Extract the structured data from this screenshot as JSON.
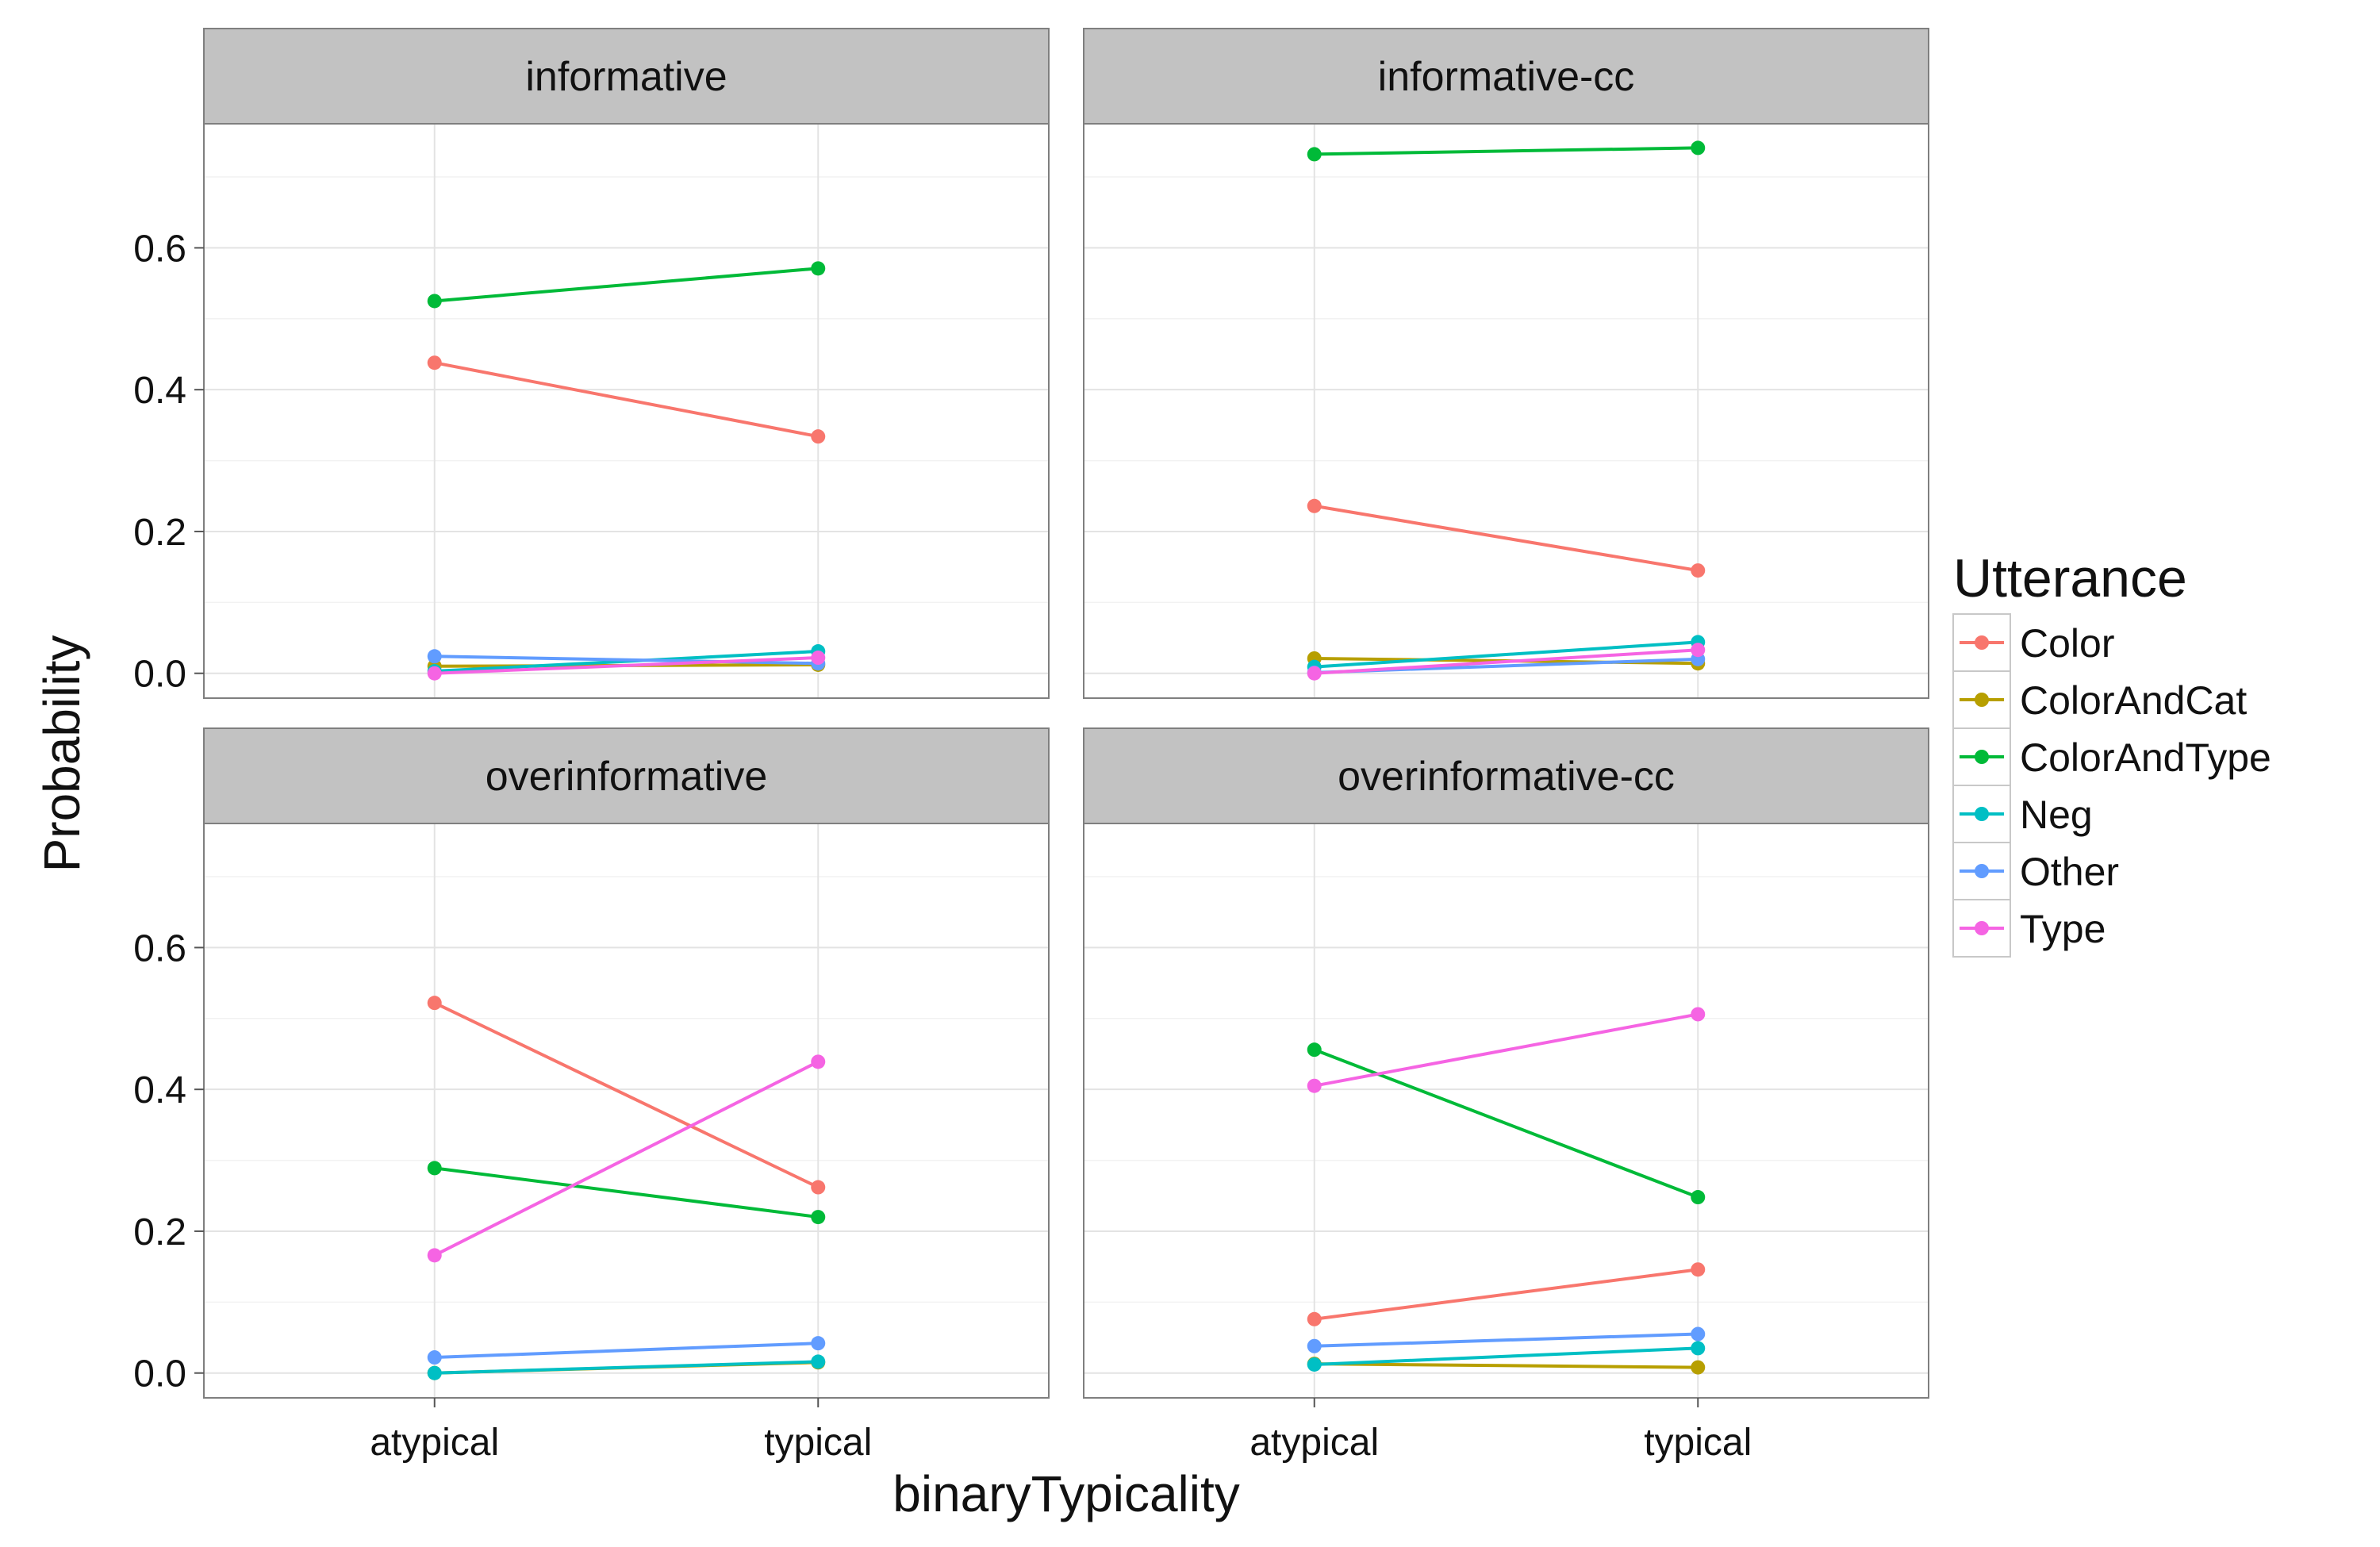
{
  "chart_data": {
    "type": "line",
    "xlabel": "binaryTypicality",
    "ylabel": "Probability",
    "categories": [
      "atypical",
      "typical"
    ],
    "ylim": [
      -0.035,
      0.775
    ],
    "yticks": [
      "0.0",
      "0.2",
      "0.4",
      "0.6"
    ],
    "grid": true,
    "facet_layout": "2x2",
    "legend": {
      "title": "Utterance",
      "position": "right"
    },
    "series_styles": [
      {
        "name": "Color",
        "color": "#F8766D"
      },
      {
        "name": "ColorAndCat",
        "color": "#B79F00"
      },
      {
        "name": "ColorAndType",
        "color": "#00BA38"
      },
      {
        "name": "Neg",
        "color": "#00BFC4"
      },
      {
        "name": "Other",
        "color": "#619CFF"
      },
      {
        "name": "Type",
        "color": "#F564E3"
      }
    ],
    "panels": [
      {
        "title": "informative",
        "series": [
          {
            "name": "Color",
            "values": [
              0.438,
              0.334
            ]
          },
          {
            "name": "ColorAndCat",
            "values": [
              0.01,
              0.012
            ]
          },
          {
            "name": "ColorAndType",
            "values": [
              0.525,
              0.571
            ]
          },
          {
            "name": "Neg",
            "values": [
              0.003,
              0.031
            ]
          },
          {
            "name": "Other",
            "values": [
              0.024,
              0.014
            ]
          },
          {
            "name": "Type",
            "values": [
              0.0,
              0.022
            ]
          }
        ]
      },
      {
        "title": "informative-cc",
        "series": [
          {
            "name": "Color",
            "values": [
              0.236,
              0.145
            ]
          },
          {
            "name": "ColorAndCat",
            "values": [
              0.021,
              0.014
            ]
          },
          {
            "name": "ColorAndType",
            "values": [
              0.732,
              0.741
            ]
          },
          {
            "name": "Neg",
            "values": [
              0.009,
              0.044
            ]
          },
          {
            "name": "Other",
            "values": [
              0.001,
              0.02
            ]
          },
          {
            "name": "Type",
            "values": [
              0.0,
              0.033
            ]
          }
        ]
      },
      {
        "title": "overinformative",
        "series": [
          {
            "name": "Color",
            "values": [
              0.522,
              0.262
            ]
          },
          {
            "name": "ColorAndCat",
            "values": [
              0.0,
              0.015
            ]
          },
          {
            "name": "ColorAndType",
            "values": [
              0.289,
              0.22
            ]
          },
          {
            "name": "Neg",
            "values": [
              0.0,
              0.016
            ]
          },
          {
            "name": "Other",
            "values": [
              0.022,
              0.042
            ]
          },
          {
            "name": "Type",
            "values": [
              0.166,
              0.439
            ]
          }
        ]
      },
      {
        "title": "overinformative-cc",
        "series": [
          {
            "name": "Color",
            "values": [
              0.076,
              0.146
            ]
          },
          {
            "name": "ColorAndCat",
            "values": [
              0.013,
              0.008
            ]
          },
          {
            "name": "ColorAndType",
            "values": [
              0.456,
              0.248
            ]
          },
          {
            "name": "Neg",
            "values": [
              0.012,
              0.035
            ]
          },
          {
            "name": "Other",
            "values": [
              0.038,
              0.055
            ]
          },
          {
            "name": "Type",
            "values": [
              0.405,
              0.506
            ]
          }
        ]
      }
    ]
  }
}
